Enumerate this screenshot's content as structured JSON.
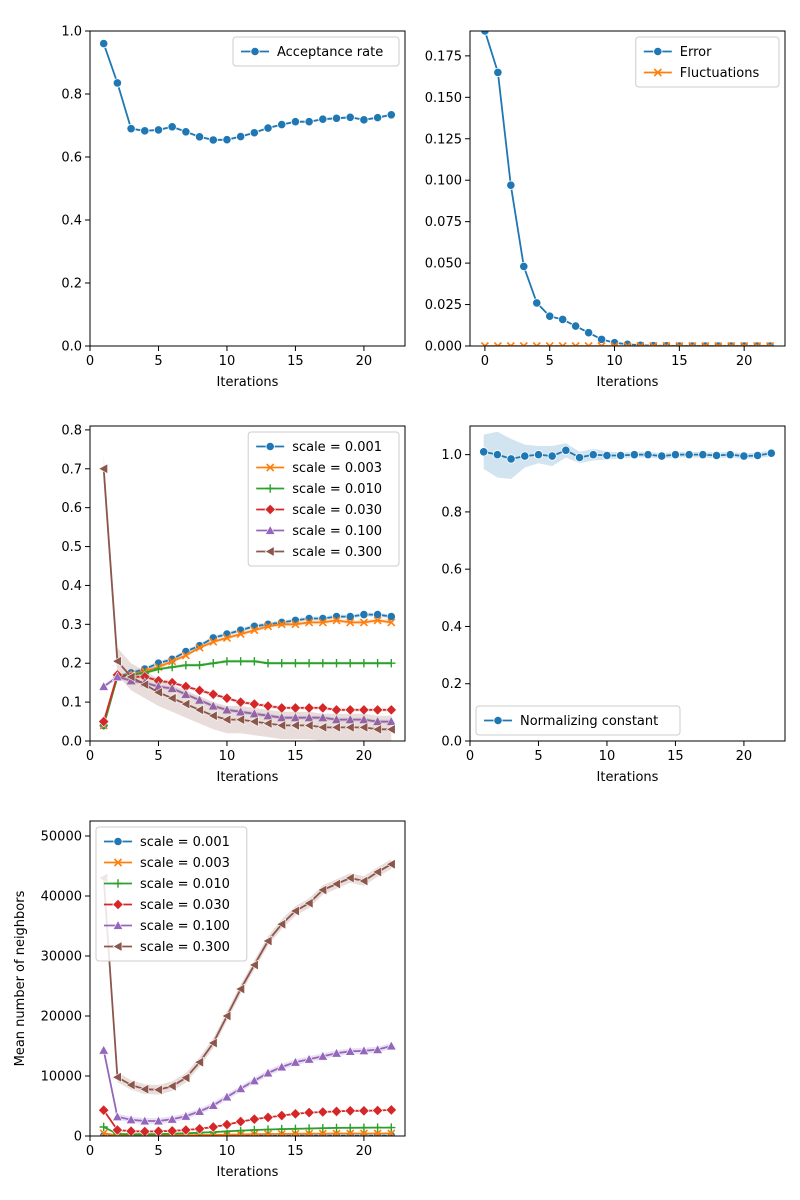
{
  "chart_data": [
    {
      "id": "acceptance",
      "type": "line",
      "xlabel": "Iterations",
      "ylabel": "",
      "xlim": [
        0,
        23
      ],
      "ylim": [
        0,
        1.0
      ],
      "xticks": [
        0,
        5,
        10,
        15,
        20
      ],
      "yticks": [
        0.0,
        0.2,
        0.4,
        0.6,
        0.8,
        1.0
      ],
      "ytick_decimals": 1,
      "legend_loc": "top-right",
      "series": [
        {
          "name": "Acceptance rate",
          "color": "#1f77b4",
          "marker": "circle",
          "x": [
            1,
            2,
            3,
            4,
            5,
            6,
            7,
            8,
            9,
            10,
            11,
            12,
            13,
            14,
            15,
            16,
            17,
            18,
            19,
            20,
            21,
            22
          ],
          "values": [
            0.96,
            0.835,
            0.69,
            0.683,
            0.686,
            0.696,
            0.68,
            0.664,
            0.654,
            0.655,
            0.665,
            0.677,
            0.692,
            0.703,
            0.712,
            0.712,
            0.72,
            0.723,
            0.726,
            0.718,
            0.725,
            0.734
          ],
          "band": 0.004
        }
      ]
    },
    {
      "id": "error",
      "type": "line",
      "xlabel": "Iterations",
      "ylabel": "",
      "xlim": [
        -1.15,
        23.15
      ],
      "ylim": [
        0,
        0.19
      ],
      "xticks": [
        0,
        5,
        10,
        15,
        20
      ],
      "yticks": [
        0.0,
        0.025,
        0.05,
        0.075,
        0.1,
        0.125,
        0.15,
        0.175
      ],
      "ytick_decimals": 3,
      "legend_loc": "top-right",
      "series": [
        {
          "name": "Error",
          "color": "#1f77b4",
          "marker": "circle",
          "x": [
            0,
            1,
            2,
            3,
            4,
            5,
            6,
            7,
            8,
            9,
            10,
            11,
            12,
            13,
            14,
            15,
            16,
            17,
            18,
            19,
            20,
            21,
            22
          ],
          "values": [
            0.19,
            0.165,
            0.097,
            0.048,
            0.026,
            0.018,
            0.016,
            0.012,
            0.008,
            0.004,
            0.002,
            0.001,
            0.0004,
            0.0002,
            0.0001,
            0,
            0,
            0,
            0,
            0,
            0,
            0,
            0
          ],
          "band": 0.0005
        },
        {
          "name": "Fluctuations",
          "color": "#ff7f0e",
          "marker": "x",
          "x": [
            0,
            1,
            2,
            3,
            4,
            5,
            6,
            7,
            8,
            9,
            10,
            11,
            12,
            13,
            14,
            15,
            16,
            17,
            18,
            19,
            20,
            21,
            22
          ],
          "values": [
            0,
            0,
            0,
            0,
            0,
            0,
            0,
            0,
            0,
            0,
            0,
            0,
            0,
            0,
            0,
            0,
            0,
            0,
            0,
            0,
            0,
            0,
            0
          ],
          "band": 0
        }
      ]
    },
    {
      "id": "fractions",
      "type": "line",
      "xlabel": "Iterations",
      "ylabel": "",
      "xlim": [
        0,
        23
      ],
      "ylim": [
        0,
        0.81
      ],
      "xticks": [
        0,
        5,
        10,
        15,
        20
      ],
      "yticks": [
        0.0,
        0.1,
        0.2,
        0.3,
        0.4,
        0.5,
        0.6,
        0.7,
        0.8
      ],
      "ytick_decimals": 1,
      "legend_loc": "top-right",
      "series": [
        {
          "name": "scale = 0.001",
          "color": "#1f77b4",
          "marker": "circle",
          "x": [
            1,
            2,
            3,
            4,
            5,
            6,
            7,
            8,
            9,
            10,
            11,
            12,
            13,
            14,
            15,
            16,
            17,
            18,
            19,
            20,
            21,
            22
          ],
          "values": [
            0.04,
            0.165,
            0.175,
            0.185,
            0.2,
            0.21,
            0.23,
            0.245,
            0.265,
            0.275,
            0.285,
            0.295,
            0.3,
            0.305,
            0.31,
            0.315,
            0.315,
            0.32,
            0.32,
            0.325,
            0.325,
            0.32
          ],
          "band": 0.005
        },
        {
          "name": "scale = 0.003",
          "color": "#ff7f0e",
          "marker": "x",
          "x": [
            1,
            2,
            3,
            4,
            5,
            6,
            7,
            8,
            9,
            10,
            11,
            12,
            13,
            14,
            15,
            16,
            17,
            18,
            19,
            20,
            21,
            22
          ],
          "values": [
            0.04,
            0.165,
            0.17,
            0.18,
            0.19,
            0.205,
            0.22,
            0.24,
            0.255,
            0.265,
            0.275,
            0.285,
            0.295,
            0.3,
            0.3,
            0.305,
            0.305,
            0.31,
            0.305,
            0.305,
            0.31,
            0.305
          ],
          "band": 0.005
        },
        {
          "name": "scale = 0.010",
          "color": "#2ca02c",
          "marker": "plus",
          "x": [
            1,
            2,
            3,
            4,
            5,
            6,
            7,
            8,
            9,
            10,
            11,
            12,
            13,
            14,
            15,
            16,
            17,
            18,
            19,
            20,
            21,
            22
          ],
          "values": [
            0.04,
            0.165,
            0.17,
            0.175,
            0.185,
            0.19,
            0.195,
            0.195,
            0.2,
            0.205,
            0.205,
            0.205,
            0.2,
            0.2,
            0.2,
            0.2,
            0.2,
            0.2,
            0.2,
            0.2,
            0.2,
            0.2
          ],
          "band": 0.004
        },
        {
          "name": "scale = 0.030",
          "color": "#d62728",
          "marker": "diamond",
          "x": [
            1,
            2,
            3,
            4,
            5,
            6,
            7,
            8,
            9,
            10,
            11,
            12,
            13,
            14,
            15,
            16,
            17,
            18,
            19,
            20,
            21,
            22
          ],
          "values": [
            0.05,
            0.17,
            0.165,
            0.165,
            0.155,
            0.15,
            0.14,
            0.13,
            0.12,
            0.11,
            0.1,
            0.095,
            0.09,
            0.085,
            0.085,
            0.085,
            0.085,
            0.08,
            0.08,
            0.08,
            0.08,
            0.08
          ],
          "band": 0.004
        },
        {
          "name": "scale = 0.100",
          "color": "#9467bd",
          "marker": "triangle",
          "x": [
            1,
            2,
            3,
            4,
            5,
            6,
            7,
            8,
            9,
            10,
            11,
            12,
            13,
            14,
            15,
            16,
            17,
            18,
            19,
            20,
            21,
            22
          ],
          "values": [
            0.14,
            0.165,
            0.155,
            0.15,
            0.14,
            0.135,
            0.12,
            0.105,
            0.09,
            0.08,
            0.075,
            0.07,
            0.065,
            0.06,
            0.06,
            0.06,
            0.06,
            0.055,
            0.055,
            0.055,
            0.05,
            0.05
          ],
          "band": 0.005
        },
        {
          "name": "scale = 0.300",
          "color": "#8c564b",
          "marker": "triangle-left",
          "x": [
            1,
            2,
            3,
            4,
            5,
            6,
            7,
            8,
            9,
            10,
            11,
            12,
            13,
            14,
            15,
            16,
            17,
            18,
            19,
            20,
            21,
            22
          ],
          "values": [
            0.7,
            0.205,
            0.165,
            0.145,
            0.125,
            0.11,
            0.095,
            0.08,
            0.065,
            0.055,
            0.055,
            0.05,
            0.045,
            0.04,
            0.04,
            0.04,
            0.035,
            0.035,
            0.035,
            0.035,
            0.03,
            0.03
          ],
          "band": 0.035
        }
      ]
    },
    {
      "id": "normalizing",
      "type": "line",
      "xlabel": "Iterations",
      "ylabel": "",
      "xlim": [
        0,
        23
      ],
      "ylim": [
        0,
        1.1
      ],
      "xticks": [
        0,
        5,
        10,
        15,
        20
      ],
      "yticks": [
        0.0,
        0.2,
        0.4,
        0.6,
        0.8,
        1.0
      ],
      "ytick_decimals": 1,
      "legend_loc": "lower-left",
      "series": [
        {
          "name": "Normalizing constant",
          "color": "#1f77b4",
          "marker": "circle",
          "x": [
            1,
            2,
            3,
            4,
            5,
            6,
            7,
            8,
            9,
            10,
            11,
            12,
            13,
            14,
            15,
            16,
            17,
            18,
            19,
            20,
            21,
            22
          ],
          "values": [
            1.01,
            1.0,
            0.985,
            0.995,
            1.0,
            0.995,
            1.015,
            0.99,
            1.0,
            0.997,
            0.997,
            1.0,
            1.0,
            0.995,
            1.0,
            1.0,
            1.0,
            0.997,
            1.0,
            0.995,
            0.997,
            1.005
          ],
          "band_widths": [
            0.06,
            0.08,
            0.07,
            0.04,
            0.03,
            0.035,
            0.025,
            0.02,
            0.02,
            0.015,
            0.01,
            0.01,
            0.01,
            0.01,
            0.01,
            0.01,
            0.01,
            0.01,
            0.01,
            0.01,
            0.01,
            0.01
          ]
        }
      ]
    },
    {
      "id": "neighbors",
      "type": "line",
      "xlabel": "Iterations",
      "ylabel": "Mean number of neighbors",
      "xlim": [
        0,
        23
      ],
      "ylim": [
        0,
        52500
      ],
      "xticks": [
        0,
        5,
        10,
        15,
        20
      ],
      "yticks": [
        0,
        10000,
        20000,
        30000,
        40000,
        50000
      ],
      "ytick_decimals": 0,
      "legend_loc": "top-left",
      "series": [
        {
          "name": "scale = 0.001",
          "color": "#1f77b4",
          "marker": "circle",
          "x": [
            1,
            2,
            3,
            4,
            5,
            6,
            7,
            8,
            9,
            10,
            11,
            12,
            13,
            14,
            15,
            16,
            17,
            18,
            19,
            20,
            21,
            22
          ],
          "values": [
            50,
            30,
            30,
            30,
            30,
            30,
            30,
            30,
            35,
            35,
            40,
            40,
            40,
            40,
            45,
            45,
            45,
            45,
            45,
            45,
            45,
            45
          ],
          "band": 20
        },
        {
          "name": "scale = 0.003",
          "color": "#ff7f0e",
          "marker": "x",
          "x": [
            1,
            2,
            3,
            4,
            5,
            6,
            7,
            8,
            9,
            10,
            11,
            12,
            13,
            14,
            15,
            16,
            17,
            18,
            19,
            20,
            21,
            22
          ],
          "values": [
            450,
            120,
            100,
            100,
            110,
            120,
            140,
            170,
            200,
            230,
            270,
            300,
            330,
            350,
            370,
            390,
            400,
            410,
            420,
            420,
            420,
            430
          ],
          "band": 40
        },
        {
          "name": "scale = 0.010",
          "color": "#2ca02c",
          "marker": "plus",
          "x": [
            1,
            2,
            3,
            4,
            5,
            6,
            7,
            8,
            9,
            10,
            11,
            12,
            13,
            14,
            15,
            16,
            17,
            18,
            19,
            20,
            21,
            22
          ],
          "values": [
            1500,
            350,
            300,
            300,
            320,
            380,
            450,
            550,
            650,
            780,
            900,
            1000,
            1080,
            1150,
            1200,
            1250,
            1300,
            1350,
            1370,
            1380,
            1400,
            1400
          ],
          "band": 80
        },
        {
          "name": "scale = 0.030",
          "color": "#d62728",
          "marker": "diamond",
          "x": [
            1,
            2,
            3,
            4,
            5,
            6,
            7,
            8,
            9,
            10,
            11,
            12,
            13,
            14,
            15,
            16,
            17,
            18,
            19,
            20,
            21,
            22
          ],
          "values": [
            4300,
            1000,
            800,
            750,
            780,
            850,
            1000,
            1200,
            1500,
            1900,
            2400,
            2800,
            3100,
            3400,
            3700,
            3900,
            4000,
            4100,
            4200,
            4200,
            4250,
            4350
          ],
          "band": 150
        },
        {
          "name": "scale = 0.100",
          "color": "#9467bd",
          "marker": "triangle",
          "x": [
            1,
            2,
            3,
            4,
            5,
            6,
            7,
            8,
            9,
            10,
            11,
            12,
            13,
            14,
            15,
            16,
            17,
            18,
            19,
            20,
            21,
            22
          ],
          "values": [
            14300,
            3200,
            2700,
            2500,
            2500,
            2800,
            3300,
            4100,
            5100,
            6500,
            7900,
            9200,
            10500,
            11500,
            12300,
            12800,
            13300,
            13800,
            14100,
            14200,
            14400,
            15000
          ],
          "band": 500
        },
        {
          "name": "scale = 0.300",
          "color": "#8c564b",
          "marker": "triangle-left",
          "x": [
            1,
            2,
            3,
            4,
            5,
            6,
            7,
            8,
            9,
            10,
            11,
            12,
            13,
            14,
            15,
            16,
            17,
            18,
            19,
            20,
            21,
            22
          ],
          "values": [
            43000,
            9800,
            8500,
            7800,
            7700,
            8300,
            9700,
            12300,
            15500,
            20000,
            24500,
            28500,
            32500,
            35300,
            37500,
            38800,
            41000,
            42000,
            43000,
            42500,
            44000,
            45300
          ],
          "band": 800
        }
      ]
    }
  ]
}
